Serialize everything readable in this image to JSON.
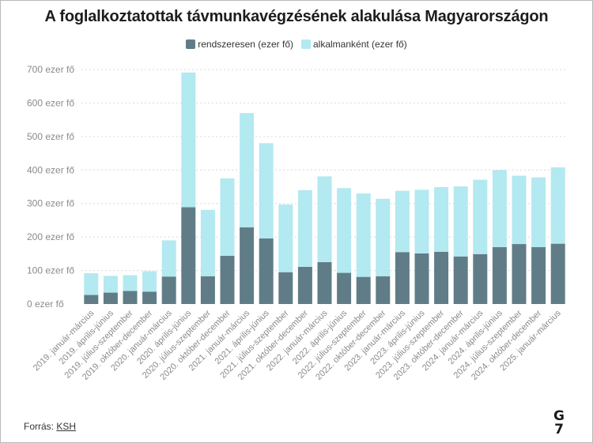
{
  "title": "A foglalkoztatottak távmunkavégzésének alakulása Magyarországon",
  "source_label": "Forrás:",
  "source_link": "KSH",
  "logo": [
    "G",
    "7"
  ],
  "colors": {
    "regular": "#607d87",
    "occasional": "#b3e9f0"
  },
  "chart_data": {
    "type": "bar",
    "stacked": true,
    "title": "A foglalkoztatottak távmunkavégzésének alakulása Magyarországon",
    "categories": [
      "2019. január-március",
      "2019. április-június",
      "2019. július-szeptember",
      "2019. október-december",
      "2020. január-március",
      "2020. április-június",
      "2020. július-szeptember",
      "2020. október-december",
      "2021. január-március",
      "2021. április-június",
      "2021. július-szeptember",
      "2021. október-december",
      "2022. január-március",
      "2022. április-június",
      "2022. július-szeptember",
      "2022. október-december",
      "2023. január-március",
      "2023. április-június",
      "2023. július-szeptember",
      "2023. október-december",
      "2024. január-március",
      "2024. április-június",
      "2024. július-szeptember",
      "2024. október-december",
      "2025. január-március"
    ],
    "series": [
      {
        "name": "rendszeresen (ezer fő)",
        "values": [
          27,
          34,
          39,
          37,
          82,
          289,
          83,
          144,
          229,
          196,
          95,
          111,
          125,
          93,
          81,
          83,
          155,
          151,
          156,
          142,
          149,
          170,
          179,
          170,
          180
        ]
      },
      {
        "name": "alkalmanként (ezer fő)",
        "values": [
          65,
          50,
          47,
          61,
          108,
          402,
          198,
          231,
          341,
          284,
          202,
          229,
          256,
          253,
          249,
          231,
          183,
          190,
          193,
          209,
          222,
          230,
          204,
          208,
          228
        ]
      }
    ],
    "y_ticks": [
      "0 ezer fő",
      "100 ezer fő",
      "200 ezer fő",
      "300 ezer fő",
      "400 ezer fő",
      "500 ezer fő",
      "600 ezer fő",
      "700 ezer fő"
    ],
    "ylim": [
      0,
      700
    ],
    "grid": true,
    "legend": "top"
  }
}
